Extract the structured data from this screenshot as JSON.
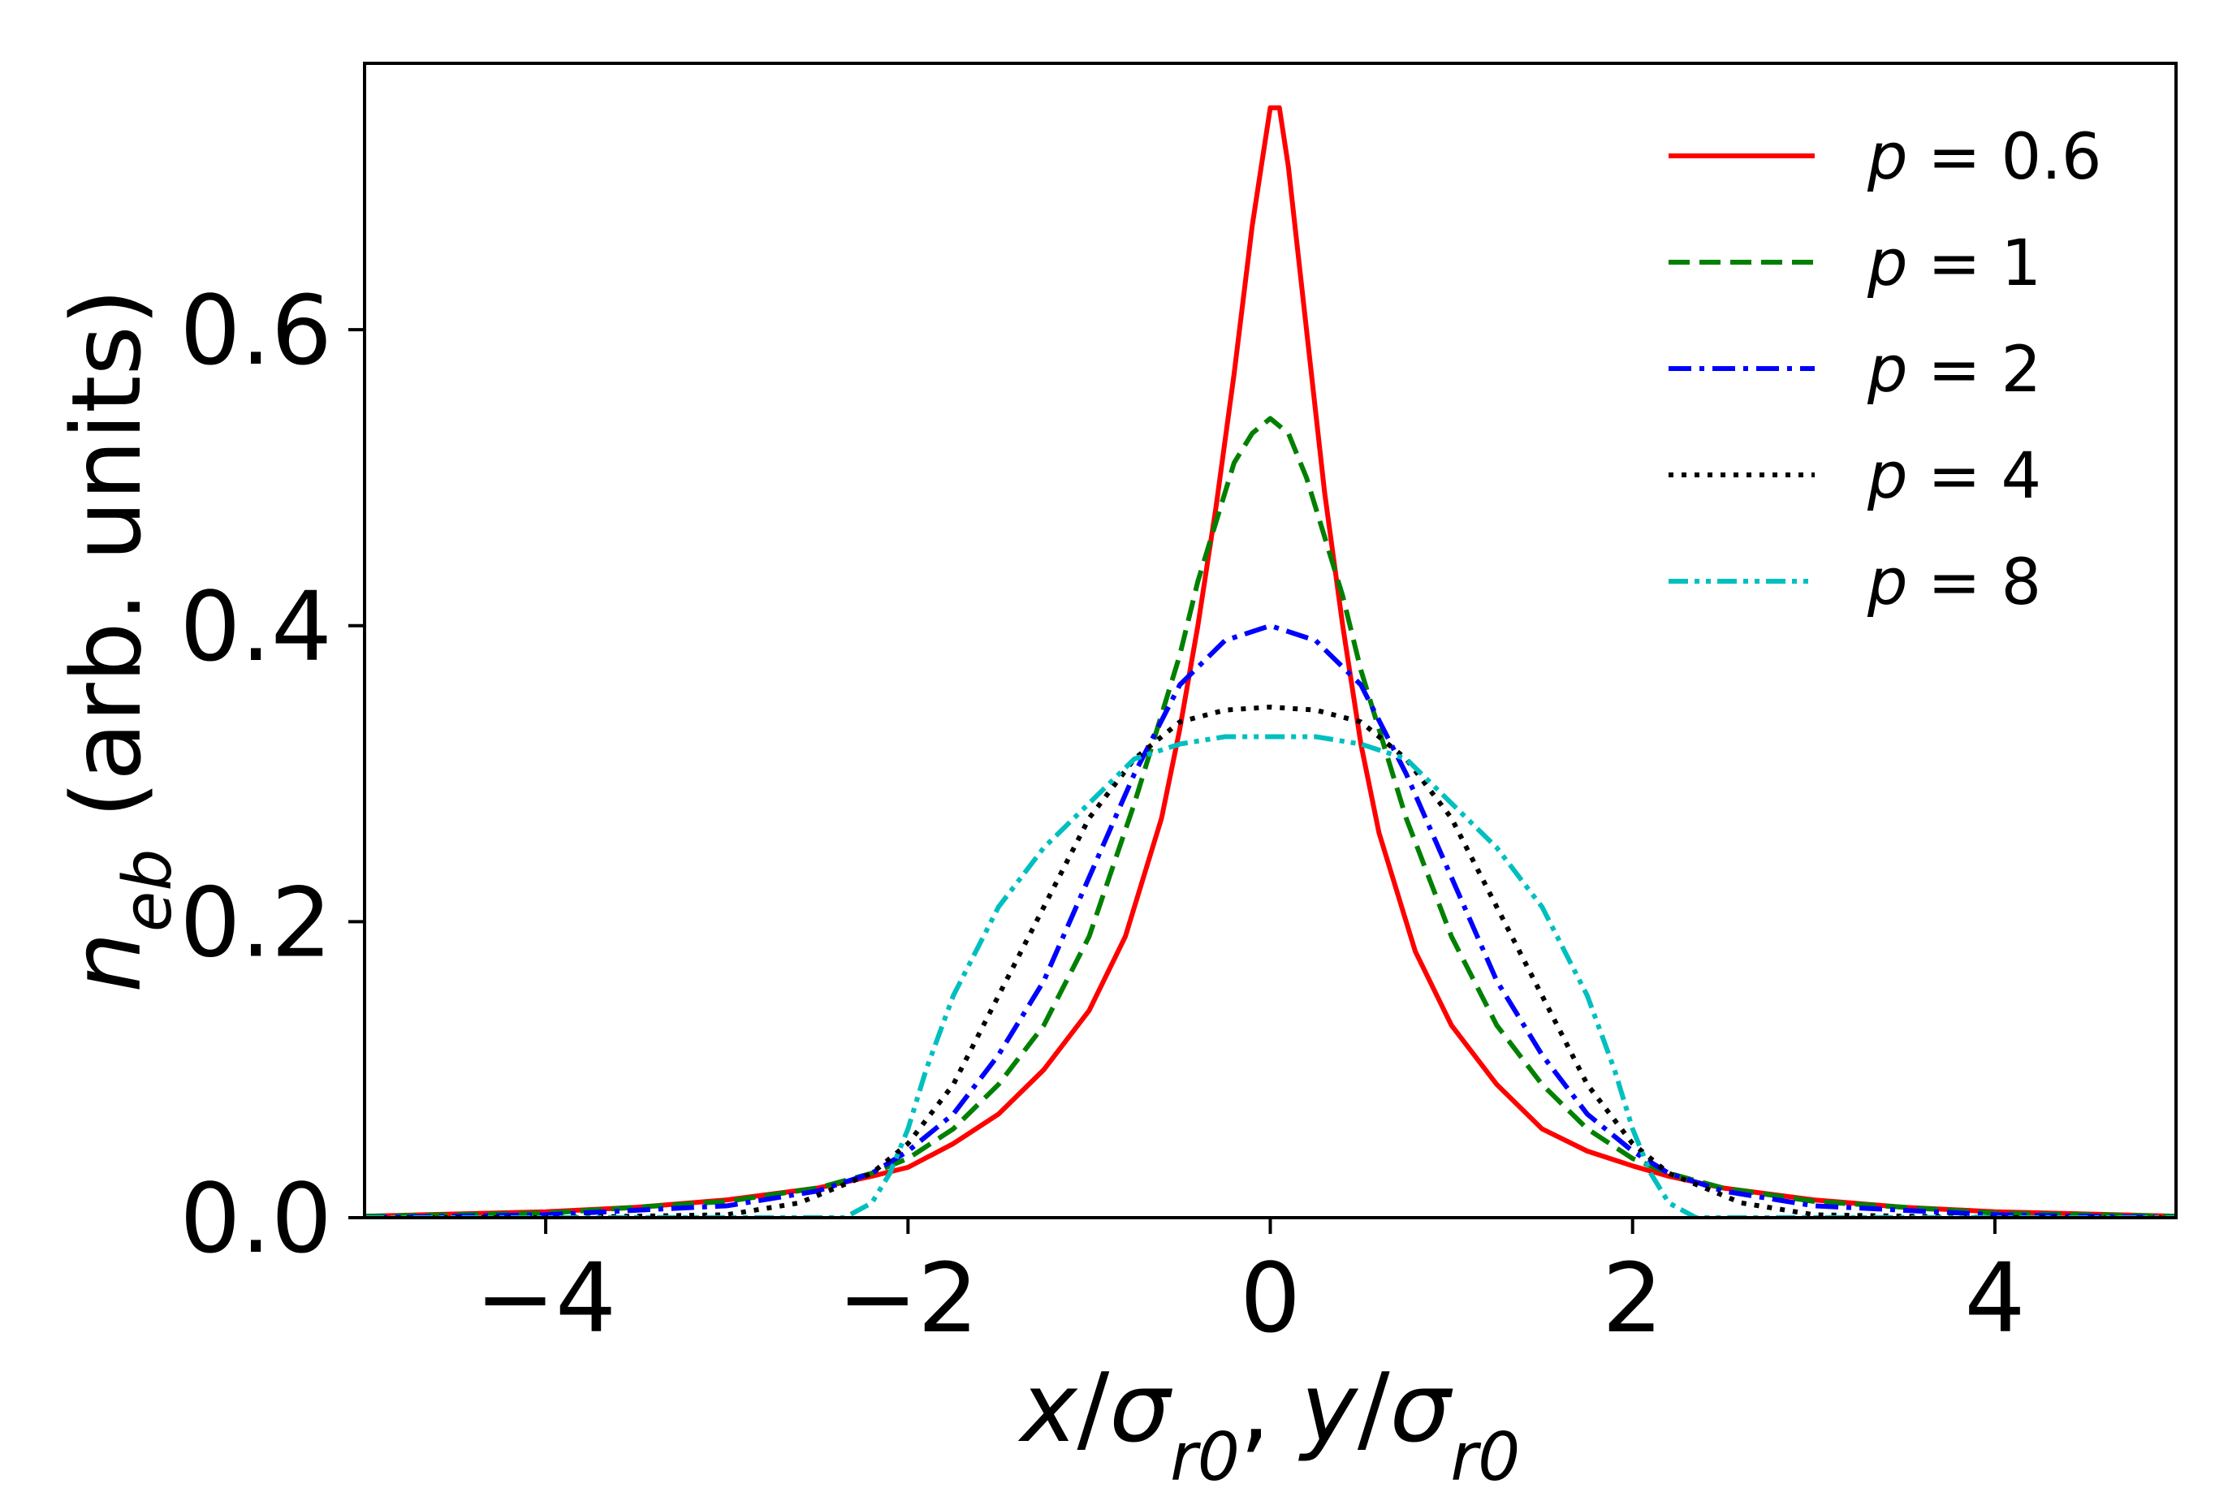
{
  "chart_data": {
    "type": "line",
    "title": "",
    "xlabel": {
      "plain": "x/σr0, y/σr0",
      "parts": [
        {
          "t": "x",
          "i": true
        },
        {
          "t": "/",
          "i": false
        },
        {
          "t": "σ",
          "i": true
        },
        {
          "t": "r0",
          "i": true,
          "sub": true
        },
        {
          "t": ", ",
          "i": false
        },
        {
          "t": "y",
          "i": true
        },
        {
          "t": "/",
          "i": false
        },
        {
          "t": "σ",
          "i": true
        },
        {
          "t": "r0",
          "i": true,
          "sub": true
        }
      ]
    },
    "ylabel": {
      "plain": "neb (arb. units)",
      "parts": [
        {
          "t": "n",
          "i": true
        },
        {
          "t": "eb",
          "i": true,
          "sub": true
        },
        {
          "t": " (arb. units)",
          "i": false
        }
      ]
    },
    "xlim": [
      -5,
      5
    ],
    "ylim": [
      0,
      0.78
    ],
    "xticks": [
      -4,
      -2,
      0,
      2,
      4
    ],
    "xtick_labels": [
      "−4",
      "−2",
      "0",
      "2",
      "4"
    ],
    "yticks": [
      0.0,
      0.2,
      0.4,
      0.6
    ],
    "ytick_labels": [
      "0.0",
      "0.2",
      "0.4",
      "0.6"
    ],
    "grid": false,
    "legend_position": "top-right",
    "series": [
      {
        "name": "p = 0.6",
        "label_var": "p",
        "label_val": "0.6",
        "color": "#ff0000",
        "dash": "solid",
        "x": [
          -5,
          -4,
          -3.5,
          -3,
          -2.5,
          -2.2,
          -2,
          -1.75,
          -1.5,
          -1.25,
          -1,
          -0.8,
          -0.6,
          -0.5,
          -0.4,
          -0.3,
          -0.2,
          -0.1,
          -0.05,
          0,
          0.05,
          0.1,
          0.2,
          0.3,
          0.4,
          0.5,
          0.6,
          0.8,
          1,
          1.25,
          1.5,
          1.75,
          2,
          2.2,
          2.5,
          3,
          3.5,
          4,
          5
        ],
        "y": [
          0.001,
          0.004,
          0.007,
          0.012,
          0.02,
          0.028,
          0.034,
          0.05,
          0.07,
          0.1,
          0.14,
          0.19,
          0.27,
          0.33,
          0.4,
          0.48,
          0.57,
          0.67,
          0.71,
          0.75,
          0.75,
          0.71,
          0.6,
          0.49,
          0.4,
          0.32,
          0.26,
          0.18,
          0.13,
          0.09,
          0.06,
          0.045,
          0.035,
          0.028,
          0.02,
          0.012,
          0.007,
          0.004,
          0.001
        ]
      },
      {
        "name": "p = 1",
        "label_var": "p",
        "label_val": "1",
        "color": "#008000",
        "dash": "dashed",
        "x": [
          -5,
          -4,
          -3,
          -2.5,
          -2.2,
          -2,
          -1.75,
          -1.5,
          -1.25,
          -1,
          -0.75,
          -0.5,
          -0.4,
          -0.3,
          -0.2,
          -0.1,
          0,
          0.1,
          0.2,
          0.3,
          0.4,
          0.5,
          0.75,
          1,
          1.25,
          1.5,
          1.75,
          2,
          2.2,
          2.5,
          3,
          4,
          5
        ],
        "y": [
          0.001,
          0.003,
          0.011,
          0.02,
          0.03,
          0.04,
          0.06,
          0.09,
          0.13,
          0.19,
          0.28,
          0.38,
          0.43,
          0.47,
          0.51,
          0.53,
          0.54,
          0.53,
          0.5,
          0.46,
          0.42,
          0.37,
          0.27,
          0.19,
          0.13,
          0.09,
          0.06,
          0.04,
          0.03,
          0.02,
          0.011,
          0.003,
          0.001
        ]
      },
      {
        "name": "p = 2",
        "label_var": "p",
        "label_val": "2",
        "color": "#0000ff",
        "dash": "dashdot",
        "x": [
          -5,
          -4,
          -3,
          -2.5,
          -2.2,
          -2,
          -1.75,
          -1.5,
          -1.25,
          -1,
          -0.75,
          -0.5,
          -0.25,
          0,
          0.25,
          0.5,
          0.75,
          1,
          1.25,
          1.5,
          1.75,
          2,
          2.2,
          2.5,
          3,
          4,
          5
        ],
        "y": [
          0.0,
          0.002,
          0.008,
          0.018,
          0.03,
          0.045,
          0.07,
          0.11,
          0.16,
          0.23,
          0.3,
          0.36,
          0.39,
          0.4,
          0.39,
          0.36,
          0.3,
          0.23,
          0.16,
          0.11,
          0.07,
          0.045,
          0.03,
          0.018,
          0.008,
          0.002,
          0.0
        ]
      },
      {
        "name": "p = 4",
        "label_var": "p",
        "label_val": "4",
        "color": "#000000",
        "dash": "dotted",
        "x": [
          -5,
          -4,
          -3,
          -2.6,
          -2.2,
          -2,
          -1.75,
          -1.5,
          -1.25,
          -1,
          -0.75,
          -0.5,
          -0.25,
          0,
          0.25,
          0.5,
          0.75,
          1,
          1.25,
          1.5,
          1.75,
          2,
          2.2,
          2.6,
          3,
          4,
          5
        ],
        "y": [
          0.0,
          0.0,
          0.002,
          0.01,
          0.03,
          0.05,
          0.09,
          0.15,
          0.21,
          0.27,
          0.31,
          0.335,
          0.343,
          0.345,
          0.343,
          0.335,
          0.31,
          0.27,
          0.21,
          0.15,
          0.09,
          0.05,
          0.03,
          0.01,
          0.002,
          0.0,
          0.0
        ]
      },
      {
        "name": "p = 8",
        "label_var": "p",
        "label_val": "8",
        "color": "#00bfbf",
        "dash": "dashdotdot",
        "x": [
          -5,
          -3,
          -2.5,
          -2.35,
          -2.2,
          -2.1,
          -2,
          -1.9,
          -1.75,
          -1.5,
          -1.25,
          -1,
          -0.75,
          -0.5,
          -0.25,
          0,
          0.25,
          0.5,
          0.75,
          1,
          1.25,
          1.5,
          1.75,
          1.9,
          2,
          2.1,
          2.2,
          2.35,
          2.5,
          3,
          5
        ],
        "y": [
          0.0,
          0.0,
          0.0,
          0.0,
          0.01,
          0.03,
          0.06,
          0.1,
          0.15,
          0.21,
          0.25,
          0.28,
          0.31,
          0.32,
          0.325,
          0.325,
          0.325,
          0.32,
          0.31,
          0.28,
          0.25,
          0.21,
          0.15,
          0.1,
          0.06,
          0.03,
          0.01,
          0.0,
          0.0,
          0.0,
          0.0
        ]
      }
    ]
  }
}
